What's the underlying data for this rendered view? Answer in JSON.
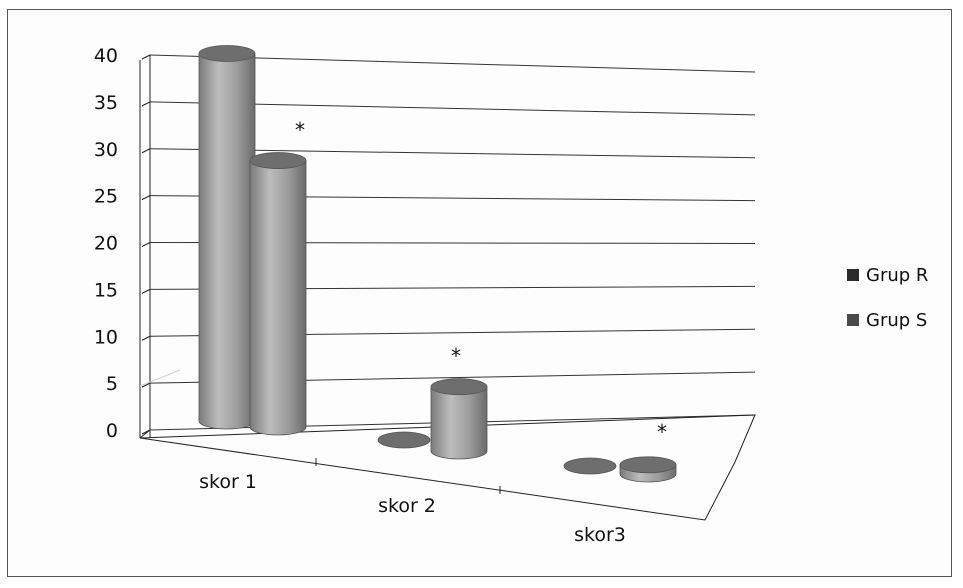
{
  "chart_data": {
    "type": "bar",
    "style": "3d-cylinder",
    "categories": [
      "skor 1",
      "skor 2",
      "skor3"
    ],
    "series": [
      {
        "name": "Grup R",
        "values": [
          40,
          0,
          0
        ]
      },
      {
        "name": "Grup S",
        "values": [
          29,
          7,
          1
        ]
      }
    ],
    "ylim": [
      0,
      40
    ],
    "yticks": [
      0,
      5,
      10,
      15,
      20,
      25,
      30,
      35,
      40
    ],
    "ytick_labels": [
      "0",
      "5",
      "10",
      "15",
      "20",
      "25",
      "30",
      "35",
      "40"
    ],
    "grid": true,
    "legend_position": "right",
    "annotations": [
      "*",
      "*",
      "*"
    ],
    "title": "",
    "xlabel": "",
    "ylabel": ""
  },
  "colors": {
    "series_fill": "#9a9a9a",
    "series_dark": "#6e6e6e",
    "series_light": "#c4c4c4",
    "grid": "#333333"
  }
}
